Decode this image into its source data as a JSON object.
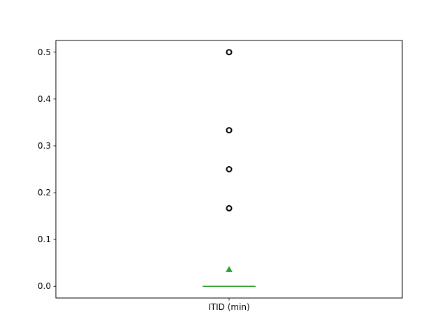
{
  "chart_data": {
    "type": "box",
    "categories": [
      "ITID (min)"
    ],
    "boxes": [
      {
        "category": "ITID (min)",
        "min": 0.0,
        "q1": 0.0,
        "median": 0.0,
        "q3": 0.0,
        "max": 0.0,
        "mean": 0.036,
        "outliers": [
          0.1667,
          0.25,
          0.3333,
          0.5
        ]
      }
    ],
    "title": "",
    "xlabel": "",
    "ylabel": "",
    "ylim": [
      -0.025,
      0.525
    ],
    "yticks": [
      0.0,
      0.1,
      0.2,
      0.3,
      0.4,
      0.5
    ],
    "ytick_labels": [
      "0.0",
      "0.1",
      "0.2",
      "0.3",
      "0.4",
      "0.5"
    ],
    "grid": false,
    "colors": {
      "median": "#2ca02c",
      "mean_marker": "#2ca02c",
      "outlier_edge": "#000000",
      "box": "#000000",
      "axes": "#000000"
    }
  }
}
